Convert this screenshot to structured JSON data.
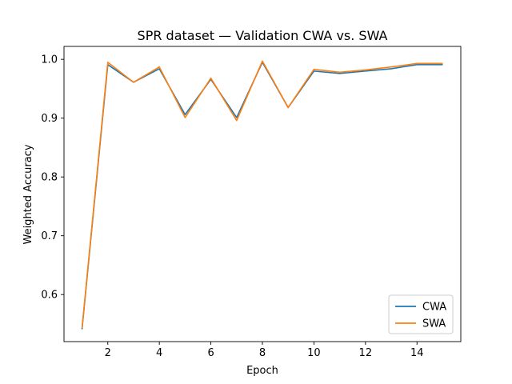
{
  "chart_data": {
    "type": "line",
    "title": "SPR dataset — Validation CWA vs. SWA",
    "xlabel": "Epoch",
    "ylabel": "Weighted Accuracy",
    "x": [
      1,
      2,
      3,
      4,
      5,
      6,
      7,
      8,
      9,
      10,
      11,
      12,
      13,
      14,
      15
    ],
    "xticks": [
      2,
      4,
      6,
      8,
      10,
      12,
      14
    ],
    "yticks": [
      0.6,
      0.7,
      0.8,
      0.9,
      1.0
    ],
    "xtick_labels": [
      "2",
      "4",
      "6",
      "8",
      "10",
      "12",
      "14"
    ],
    "ytick_labels": [
      "0.6",
      "0.7",
      "0.8",
      "0.9",
      "1.0"
    ],
    "xlim": [
      0.3,
      15.7
    ],
    "ylim": [
      0.52,
      1.022
    ],
    "grid": false,
    "legend_position": "lower-right",
    "series": [
      {
        "name": "CWA",
        "color": "#1f77b4",
        "values": [
          0.541,
          0.991,
          0.961,
          0.984,
          0.906,
          0.966,
          0.901,
          0.995,
          0.918,
          0.98,
          0.976,
          0.98,
          0.984,
          0.991,
          0.991
        ]
      },
      {
        "name": "SWA",
        "color": "#ff7f0e",
        "values": [
          0.543,
          0.995,
          0.961,
          0.987,
          0.901,
          0.968,
          0.896,
          0.997,
          0.918,
          0.983,
          0.978,
          0.982,
          0.987,
          0.993,
          0.993
        ]
      }
    ]
  }
}
